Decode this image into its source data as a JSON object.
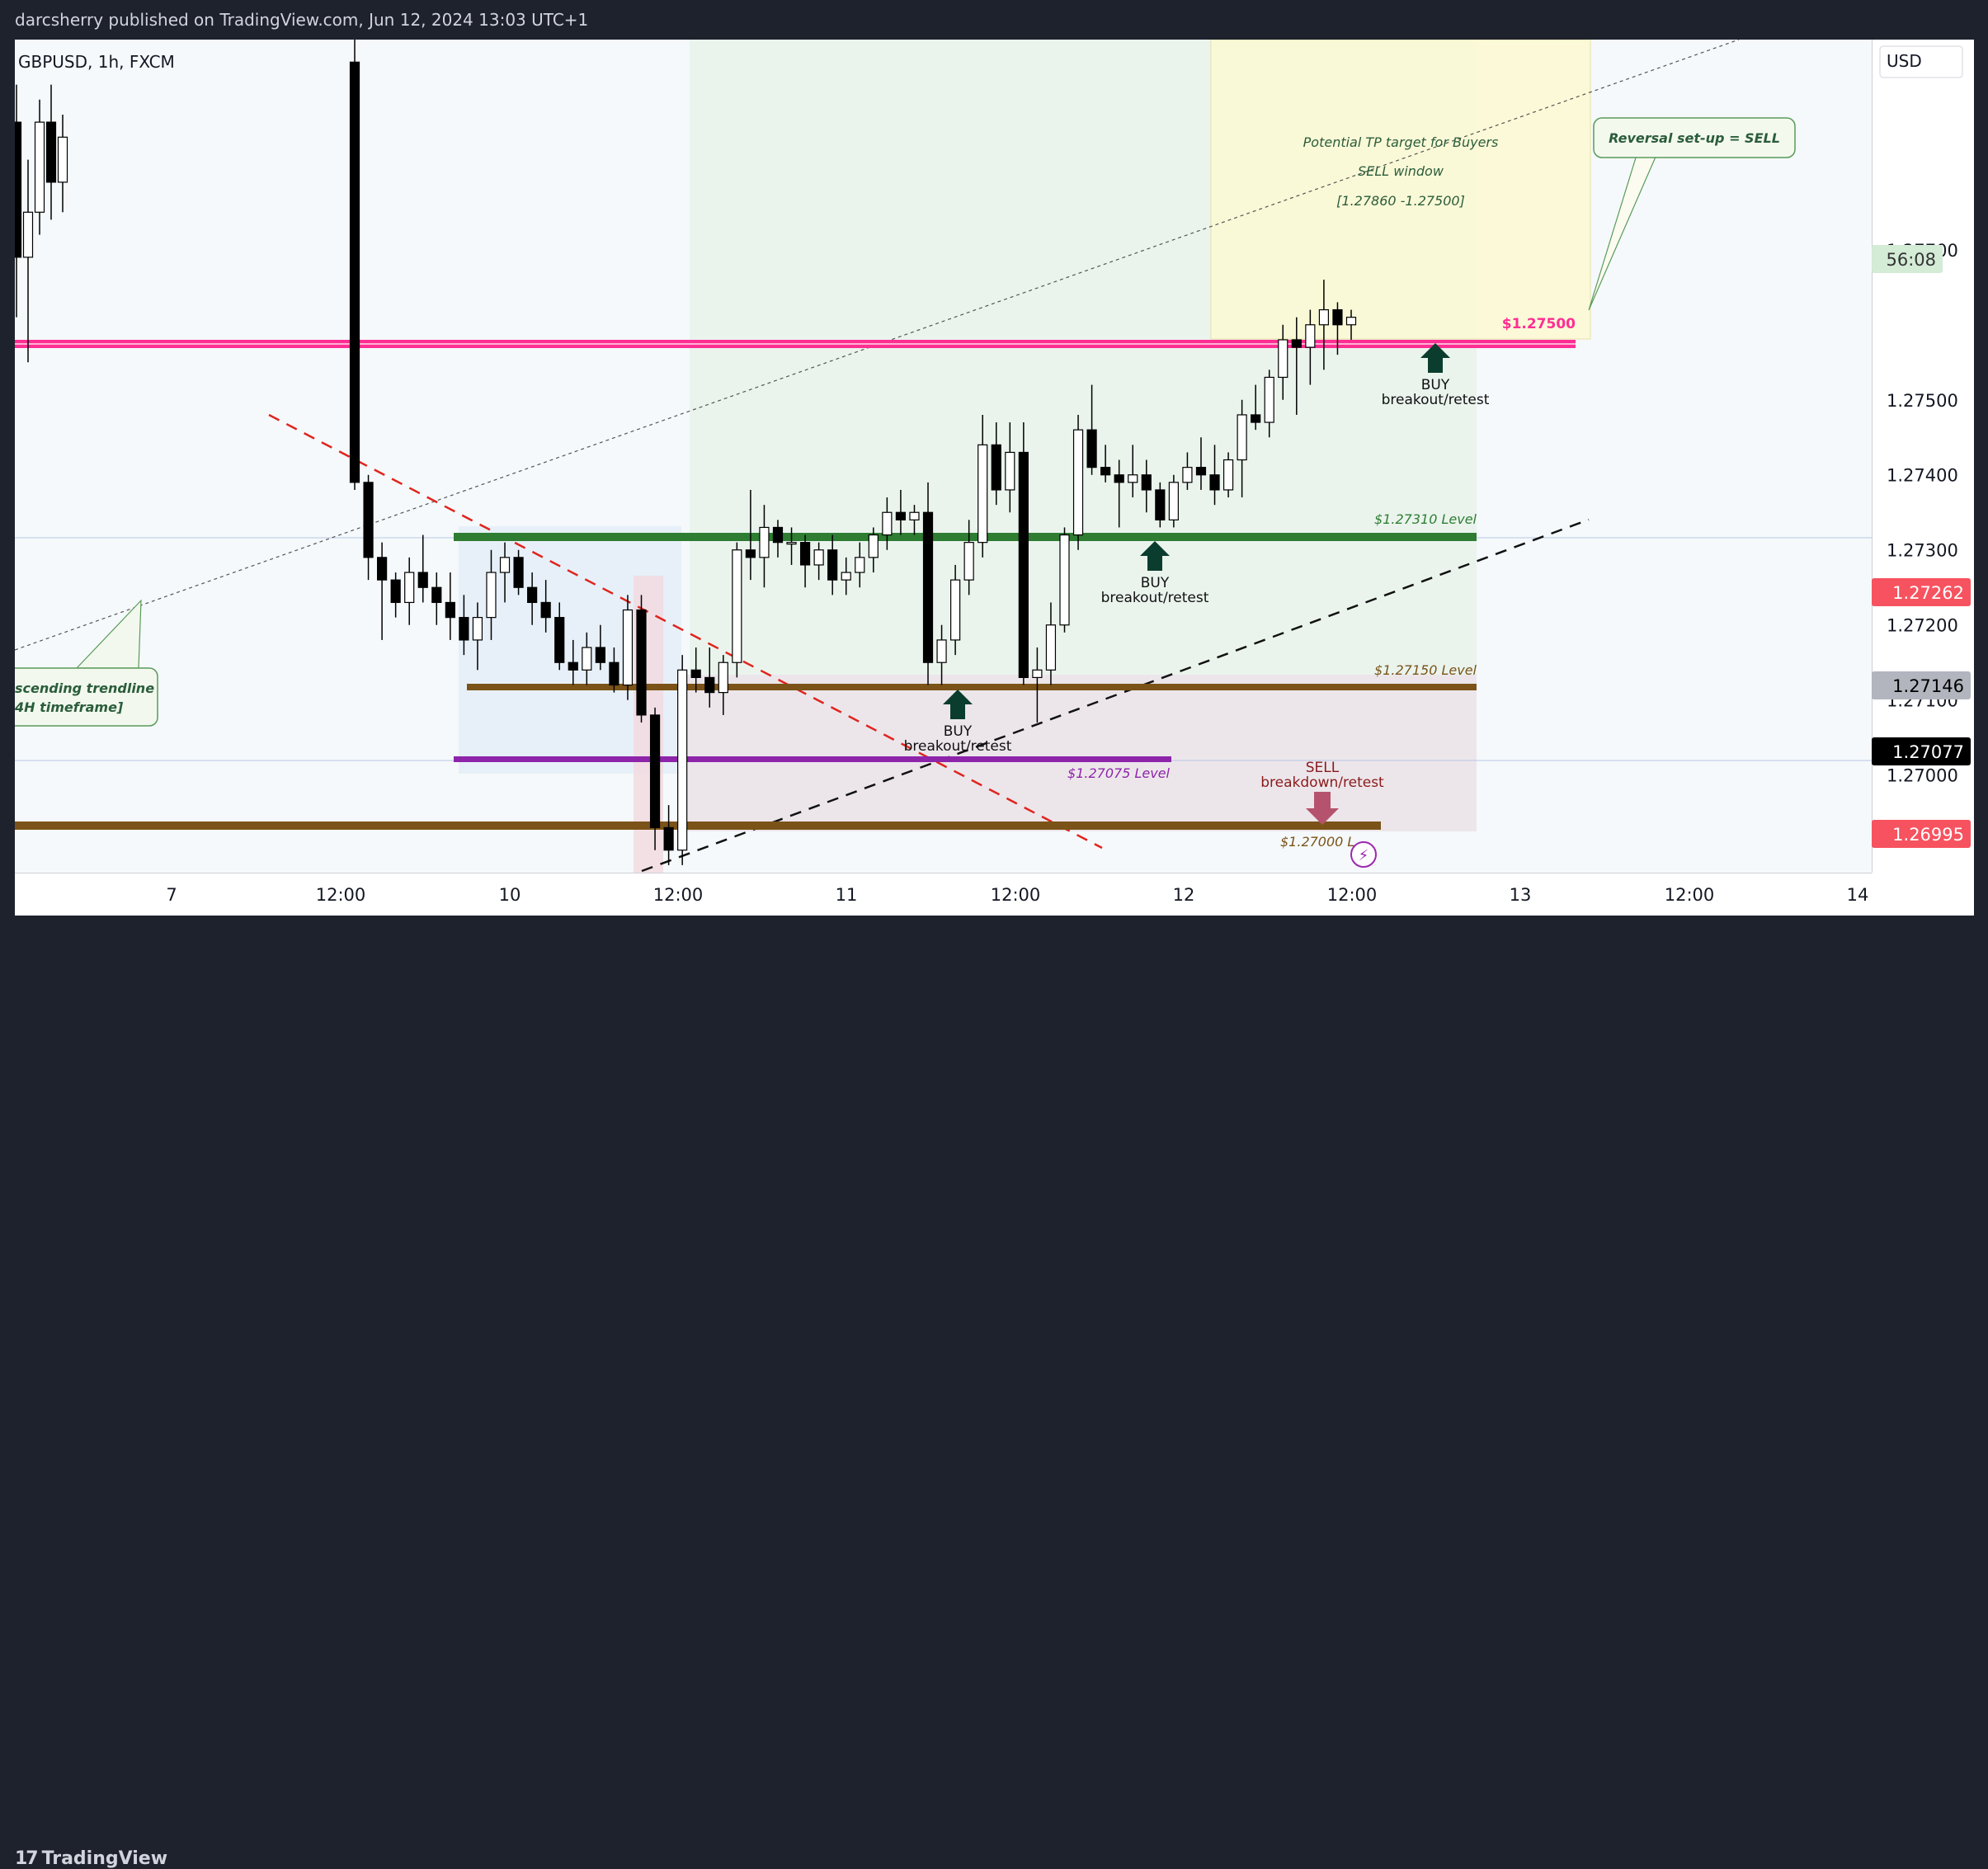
{
  "header": {
    "published": "darcsherry published on TradingView.com, Jun 12, 2024 13:03 UTC+1",
    "symbol": "GBPUSD, 1h, FXCM",
    "currency": "USD"
  },
  "branding": {
    "logo_text": "TradingView",
    "logo_mark": "17"
  },
  "colors": {
    "up_candle": "#ffffff",
    "down_candle": "#000000",
    "resistance": "#ff2e93",
    "support_green": "#2e7d32",
    "support_brown": "#7b5318",
    "support_purple": "#8e24aa",
    "sell_label": "#8b1a1a",
    "buy_arrow": "#0b3d2e"
  },
  "chart_data": {
    "type": "candlestick",
    "symbol": "GBPUSD",
    "timeframe": "1h",
    "x_ticks": [
      "7",
      "12:00",
      "10",
      "12:00",
      "11",
      "12:00",
      "12",
      "12:00",
      "13",
      "12:00",
      "14"
    ],
    "y_ticks": [
      "1.27000",
      "1.27100",
      "1.27200",
      "1.27300",
      "1.27400",
      "1.27500",
      "1.27700"
    ],
    "ylim": [
      1.2687,
      1.2798
    ],
    "price_labels": [
      {
        "text": "56:08",
        "kind": "countdown"
      },
      {
        "text": "1.27262",
        "kind": "red"
      },
      {
        "text": "1.27146",
        "kind": "gray"
      },
      {
        "text": "1.27077",
        "kind": "black"
      },
      {
        "text": "1.26995",
        "kind": "red"
      }
    ],
    "levels": [
      {
        "price": 1.275,
        "label": "$1.27500"
      },
      {
        "price": 1.2731,
        "label": "$1.27310 Level"
      },
      {
        "price": 1.2715,
        "label": "$1.27150 Level"
      },
      {
        "price": 1.27075,
        "label": "$1.27075 Level"
      },
      {
        "price": 1.27,
        "label": "$1.27000 L"
      }
    ],
    "annotations": {
      "tp_line1": "Potential TP target for Buyers",
      "tp_line2": "SELL window",
      "tp_line3": "[1.27860 -1.27500]",
      "reversal": "Reversal set-up = SELL",
      "trendline_1": "scending trendline",
      "trendline_2": "4H timeframe]",
      "buy": "BUY",
      "breakout": "breakout/retest",
      "sell": "SELL",
      "breakdown": "breakdown/retest"
    },
    "candles": [
      [
        1.2787,
        1.2792,
        1.2761,
        1.2769
      ],
      [
        1.2769,
        1.2782,
        1.2755,
        1.2775
      ],
      [
        1.2775,
        1.279,
        1.2772,
        1.2787
      ],
      [
        1.2787,
        1.2792,
        1.2774,
        1.2779
      ],
      [
        1.2779,
        1.2788,
        1.2775,
        1.2785
      ],
      [
        1.2795,
        1.2799,
        1.2738,
        1.2739
      ],
      [
        1.2739,
        1.274,
        1.2726,
        1.2729
      ],
      [
        1.2729,
        1.2731,
        1.2718,
        1.2726
      ],
      [
        1.2726,
        1.2727,
        1.2721,
        1.2723
      ],
      [
        1.2723,
        1.2729,
        1.272,
        1.2727
      ],
      [
        1.2727,
        1.2732,
        1.2723,
        1.2725
      ],
      [
        1.2725,
        1.2727,
        1.272,
        1.2723
      ],
      [
        1.2723,
        1.2727,
        1.2718,
        1.2721
      ],
      [
        1.2721,
        1.2724,
        1.2716,
        1.2718
      ],
      [
        1.2718,
        1.2723,
        1.2714,
        1.2721
      ],
      [
        1.2721,
        1.273,
        1.2718,
        1.2727
      ],
      [
        1.2727,
        1.2731,
        1.2723,
        1.2729
      ],
      [
        1.2729,
        1.273,
        1.2724,
        1.2725
      ],
      [
        1.2725,
        1.2727,
        1.272,
        1.2723
      ],
      [
        1.2723,
        1.2726,
        1.2719,
        1.2721
      ],
      [
        1.2721,
        1.2723,
        1.2714,
        1.2715
      ],
      [
        1.2715,
        1.2718,
        1.2712,
        1.2714
      ],
      [
        1.2714,
        1.2719,
        1.2712,
        1.2717
      ],
      [
        1.2717,
        1.272,
        1.2714,
        1.2715
      ],
      [
        1.2715,
        1.2717,
        1.2711,
        1.2712
      ],
      [
        1.2712,
        1.2724,
        1.271,
        1.2722
      ],
      [
        1.2722,
        1.2724,
        1.2707,
        1.2708
      ],
      [
        1.2708,
        1.2709,
        1.269,
        1.2693
      ],
      [
        1.2693,
        1.2696,
        1.2688,
        1.269
      ],
      [
        1.269,
        1.2716,
        1.2688,
        1.2714
      ],
      [
        1.2714,
        1.2717,
        1.2711,
        1.2713
      ],
      [
        1.2713,
        1.2717,
        1.2709,
        1.2711
      ],
      [
        1.2711,
        1.2716,
        1.2708,
        1.2715
      ],
      [
        1.2715,
        1.2731,
        1.2713,
        1.273
      ],
      [
        1.273,
        1.2738,
        1.2726,
        1.2729
      ],
      [
        1.2729,
        1.2736,
        1.2725,
        1.2733
      ],
      [
        1.2733,
        1.2734,
        1.2729,
        1.2731
      ],
      [
        1.2731,
        1.2733,
        1.2728,
        1.2731
      ],
      [
        1.2731,
        1.2732,
        1.2725,
        1.2728
      ],
      [
        1.2728,
        1.2731,
        1.2726,
        1.273
      ],
      [
        1.273,
        1.2732,
        1.2724,
        1.2726
      ],
      [
        1.2726,
        1.2729,
        1.2724,
        1.2727
      ],
      [
        1.2727,
        1.2731,
        1.2725,
        1.2729
      ],
      [
        1.2729,
        1.2733,
        1.2727,
        1.2732
      ],
      [
        1.2732,
        1.2737,
        1.273,
        1.2735
      ],
      [
        1.2735,
        1.2738,
        1.2732,
        1.2734
      ],
      [
        1.2734,
        1.2736,
        1.2732,
        1.2735
      ],
      [
        1.2735,
        1.2739,
        1.2712,
        1.2715
      ],
      [
        1.2715,
        1.272,
        1.2712,
        1.2718
      ],
      [
        1.2718,
        1.2728,
        1.2716,
        1.2726
      ],
      [
        1.2726,
        1.2734,
        1.2724,
        1.2731
      ],
      [
        1.2731,
        1.2748,
        1.2729,
        1.2744
      ],
      [
        1.2744,
        1.2747,
        1.2736,
        1.2738
      ],
      [
        1.2738,
        1.2747,
        1.2735,
        1.2743
      ],
      [
        1.2743,
        1.2747,
        1.2712,
        1.2713
      ],
      [
        1.2713,
        1.2717,
        1.2707,
        1.2714
      ],
      [
        1.2714,
        1.2723,
        1.2712,
        1.272
      ],
      [
        1.272,
        1.2733,
        1.2719,
        1.2732
      ],
      [
        1.2732,
        1.2748,
        1.273,
        1.2746
      ],
      [
        1.2746,
        1.2752,
        1.274,
        1.2741
      ],
      [
        1.2741,
        1.2744,
        1.2739,
        1.274
      ],
      [
        1.274,
        1.2742,
        1.2733,
        1.2739
      ],
      [
        1.2739,
        1.2744,
        1.2737,
        1.274
      ],
      [
        1.274,
        1.2742,
        1.2735,
        1.2738
      ],
      [
        1.2738,
        1.2739,
        1.2733,
        1.2734
      ],
      [
        1.2734,
        1.274,
        1.2733,
        1.2739
      ],
      [
        1.2739,
        1.2743,
        1.2738,
        1.2741
      ],
      [
        1.2741,
        1.2745,
        1.2738,
        1.274
      ],
      [
        1.274,
        1.2744,
        1.2736,
        1.2738
      ],
      [
        1.2738,
        1.2743,
        1.2737,
        1.2742
      ],
      [
        1.2742,
        1.275,
        1.2737,
        1.2748
      ],
      [
        1.2748,
        1.2752,
        1.2746,
        1.2747
      ],
      [
        1.2747,
        1.2754,
        1.2745,
        1.2753
      ],
      [
        1.2753,
        1.276,
        1.275,
        1.2758
      ],
      [
        1.2758,
        1.2761,
        1.2748,
        1.2757
      ],
      [
        1.2757,
        1.2762,
        1.2752,
        1.276
      ],
      [
        1.276,
        1.2766,
        1.2754,
        1.2762
      ],
      [
        1.2762,
        1.2763,
        1.2756,
        1.276
      ],
      [
        1.276,
        1.2762,
        1.2758,
        1.2761
      ]
    ]
  }
}
